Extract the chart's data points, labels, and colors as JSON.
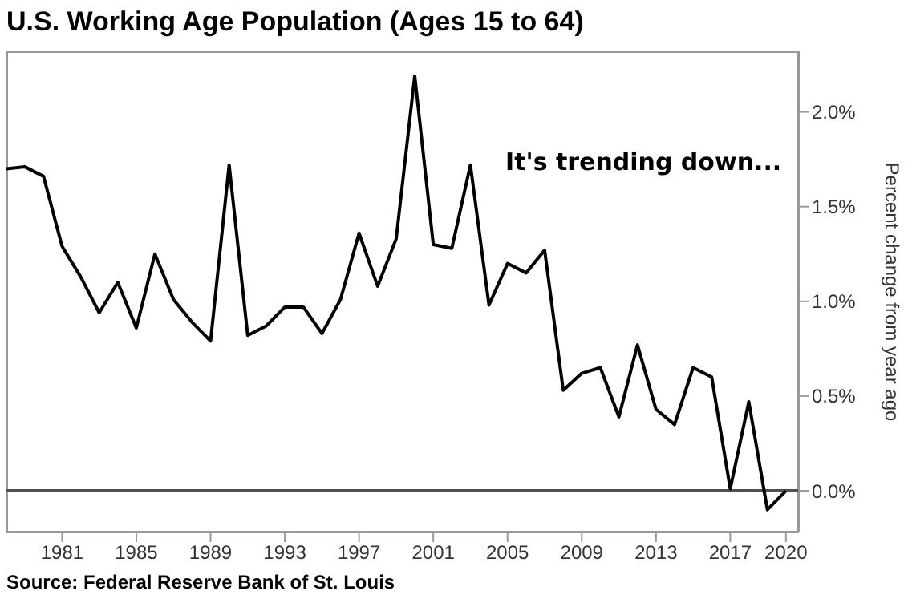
{
  "chart_data": {
    "type": "line",
    "title": "U.S. Working Age Population (Ages 15 to 64)",
    "ylabel": "Percent change from year ago",
    "annotations": [
      "It's trending down...",
      "Source: Federal Reserve Bank of St. Louis"
    ],
    "x": [
      1978,
      1979,
      1980,
      1981,
      1982,
      1983,
      1984,
      1985,
      1986,
      1987,
      1988,
      1989,
      1990,
      1991,
      1992,
      1993,
      1994,
      1995,
      1996,
      1997,
      1998,
      1999,
      2000,
      2001,
      2002,
      2003,
      2004,
      2005,
      2006,
      2007,
      2008,
      2009,
      2010,
      2011,
      2012,
      2013,
      2014,
      2015,
      2016,
      2017,
      2018,
      2019,
      2020
    ],
    "series": [
      {
        "color": "#000000",
        "values": [
          1.7,
          1.71,
          1.66,
          1.29,
          1.13,
          0.94,
          1.1,
          0.86,
          1.25,
          1.01,
          0.89,
          0.79,
          1.72,
          0.82,
          0.87,
          0.97,
          0.97,
          0.83,
          1.01,
          1.36,
          1.08,
          1.33,
          2.19,
          1.3,
          1.28,
          1.72,
          0.98,
          1.2,
          1.15,
          1.27,
          0.53,
          0.62,
          0.65,
          0.39,
          0.77,
          0.43,
          0.35,
          0.65,
          0.6,
          0.01,
          0.47,
          -0.1,
          0.0
        ]
      }
    ],
    "xlim": [
      1978,
      2020.7
    ],
    "xticks": [
      1981,
      1985,
      1989,
      1993,
      1997,
      2001,
      2005,
      2009,
      2013,
      2017,
      2020
    ],
    "ylim": [
      -0.22,
      2.32
    ],
    "yticks": [
      {
        "value": 0,
        "label": "0.0%"
      },
      {
        "value": 0.5,
        "label": "0.5%"
      },
      {
        "value": 1,
        "label": "1.0%"
      },
      {
        "value": 1.5,
        "label": "1.5%"
      },
      {
        "value": 2,
        "label": "2.0%"
      }
    ],
    "ref_lines": [
      {
        "axis": "y",
        "value": 0,
        "color": "#505050"
      }
    ],
    "marker": "none",
    "line_style": "solid"
  }
}
